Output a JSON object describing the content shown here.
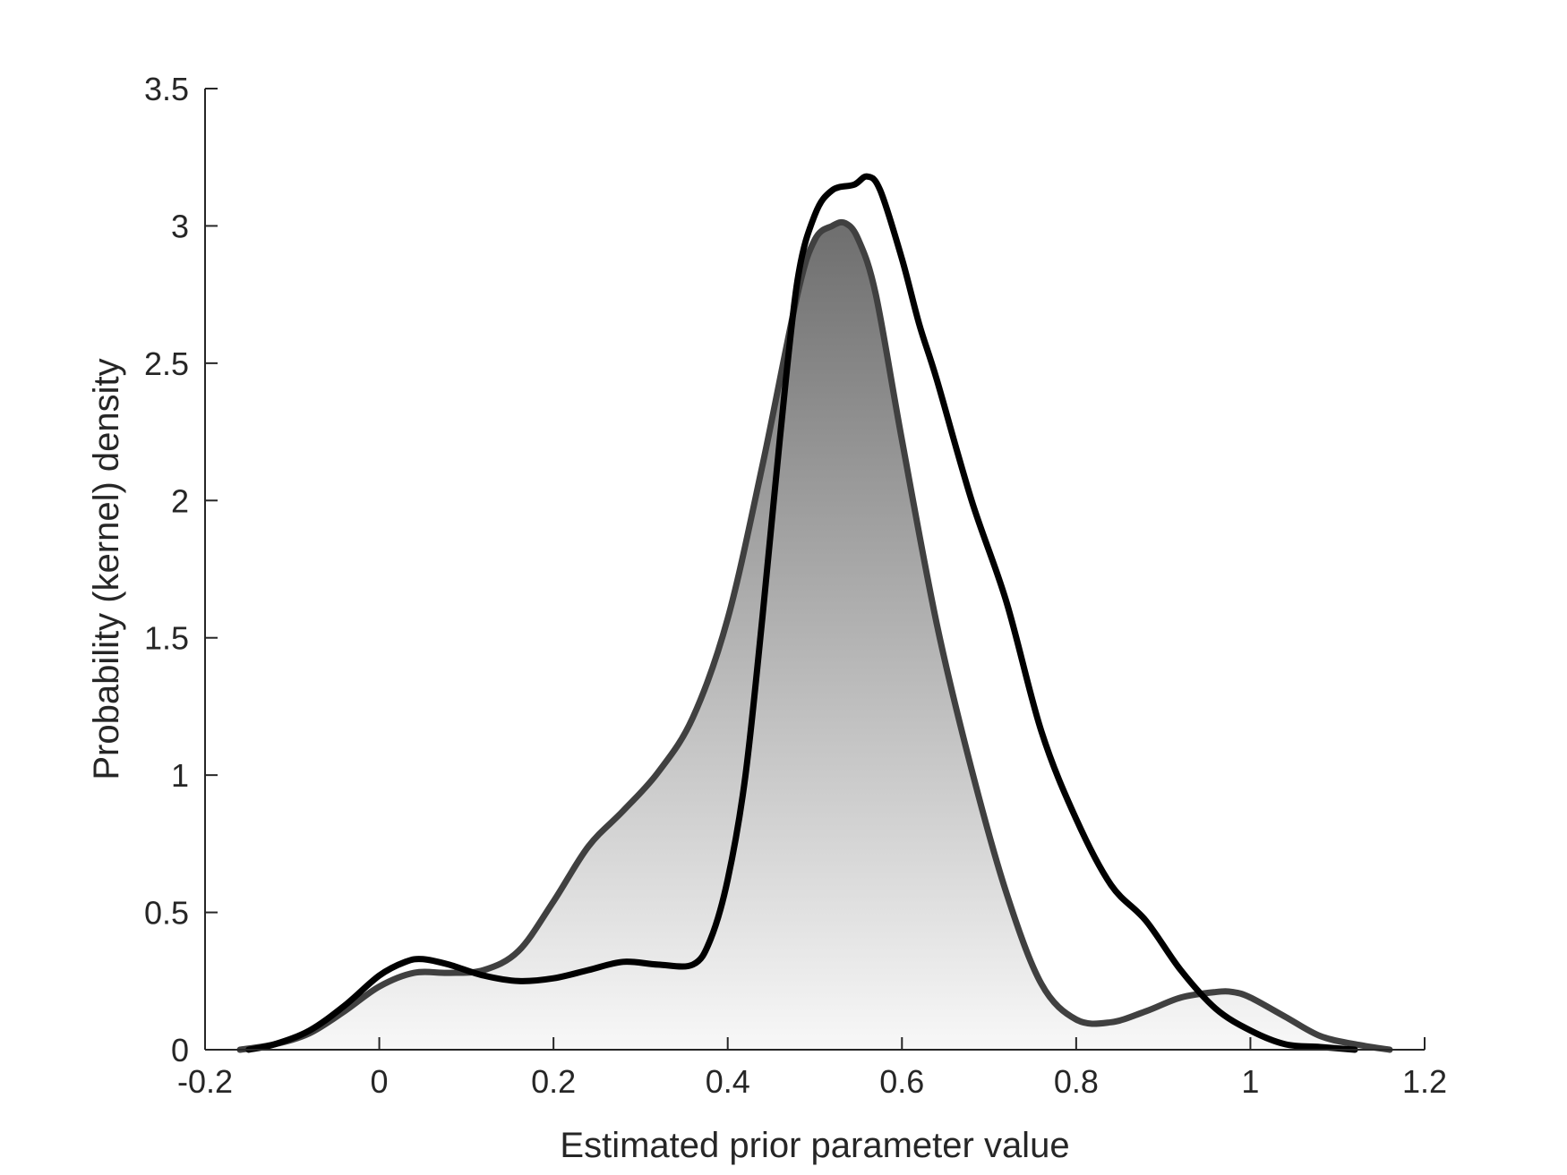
{
  "chart_data": {
    "type": "area",
    "title": "",
    "xlabel": "Estimated prior parameter value",
    "ylabel": "Probability (kernel) density",
    "xlim": [
      -0.2,
      1.2
    ],
    "ylim": [
      0,
      3.5
    ],
    "xticks": [
      -0.2,
      0,
      0.2,
      0.4,
      0.6,
      0.8,
      1,
      1.2
    ],
    "xtick_labels": [
      "-0.2",
      "0",
      "0.2",
      "0.4",
      "0.6",
      "0.8",
      "1",
      "1.2"
    ],
    "yticks": [
      0,
      0.5,
      1,
      1.5,
      2,
      2.5,
      3,
      3.5
    ],
    "ytick_labels": [
      "0",
      "0.5",
      "1",
      "1.5",
      "2",
      "2.5",
      "3",
      "3.5"
    ],
    "grid": false,
    "legend": "none",
    "series": [
      {
        "style": "shaded",
        "color": "#404040",
        "fill_top": "#6e6e6e",
        "fill_bottom": "#f8f8f8",
        "x": [
          -0.16,
          -0.12,
          -0.08,
          -0.04,
          0.0,
          0.04,
          0.08,
          0.12,
          0.16,
          0.2,
          0.24,
          0.28,
          0.32,
          0.36,
          0.4,
          0.44,
          0.48,
          0.5,
          0.52,
          0.535,
          0.55,
          0.57,
          0.6,
          0.64,
          0.68,
          0.72,
          0.76,
          0.8,
          0.84,
          0.88,
          0.92,
          0.96,
          0.98,
          1.0,
          1.04,
          1.08,
          1.12,
          1.16
        ],
        "y": [
          0.0,
          0.02,
          0.06,
          0.14,
          0.23,
          0.28,
          0.28,
          0.29,
          0.36,
          0.54,
          0.74,
          0.87,
          1.01,
          1.21,
          1.57,
          2.13,
          2.75,
          2.95,
          3.0,
          3.01,
          2.95,
          2.75,
          2.22,
          1.55,
          1.02,
          0.57,
          0.24,
          0.11,
          0.1,
          0.14,
          0.19,
          0.21,
          0.21,
          0.19,
          0.12,
          0.05,
          0.02,
          0.0
        ]
      },
      {
        "style": "line",
        "color": "#000000",
        "x": [
          -0.15,
          -0.12,
          -0.08,
          -0.04,
          0.0,
          0.03,
          0.05,
          0.08,
          0.12,
          0.16,
          0.2,
          0.24,
          0.28,
          0.32,
          0.36,
          0.38,
          0.4,
          0.42,
          0.44,
          0.46,
          0.48,
          0.5,
          0.52,
          0.545,
          0.56,
          0.575,
          0.6,
          0.62,
          0.64,
          0.68,
          0.72,
          0.76,
          0.8,
          0.84,
          0.88,
          0.92,
          0.96,
          1.0,
          1.04,
          1.08,
          1.12
        ],
        "y": [
          0.0,
          0.02,
          0.07,
          0.16,
          0.27,
          0.32,
          0.33,
          0.31,
          0.27,
          0.25,
          0.26,
          0.29,
          0.32,
          0.31,
          0.31,
          0.4,
          0.62,
          0.99,
          1.58,
          2.23,
          2.8,
          3.04,
          3.13,
          3.15,
          3.18,
          3.13,
          2.88,
          2.64,
          2.44,
          2.0,
          1.63,
          1.16,
          0.84,
          0.6,
          0.47,
          0.29,
          0.15,
          0.07,
          0.02,
          0.01,
          0.0
        ]
      }
    ]
  }
}
